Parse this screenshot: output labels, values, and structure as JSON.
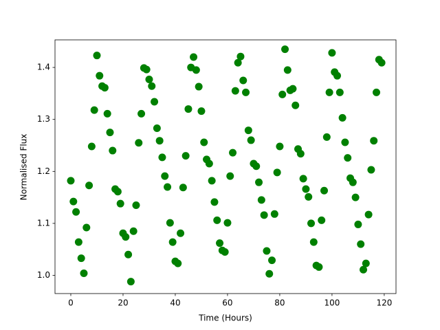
{
  "chart_data": {
    "type": "scatter",
    "xlabel": "Time (Hours)",
    "ylabel": "Normalised Flux",
    "x": [
      0,
      1,
      2,
      3,
      4,
      5,
      6,
      7,
      8,
      9,
      10,
      11,
      12,
      13,
      14,
      15,
      16,
      17,
      18,
      19,
      20,
      21,
      22,
      23,
      24,
      25,
      26,
      27,
      28,
      29,
      30,
      31,
      32,
      33,
      34,
      35,
      36,
      37,
      38,
      39,
      40,
      41,
      42,
      43,
      44,
      45,
      46,
      47,
      48,
      49,
      50,
      51,
      52,
      53,
      54,
      55,
      56,
      57,
      58,
      59,
      60,
      61,
      62,
      63,
      64,
      65,
      66,
      67,
      68,
      69,
      70,
      71,
      72,
      73,
      74,
      75,
      76,
      77,
      78,
      79,
      80,
      81,
      82,
      83,
      84,
      85,
      86,
      87,
      88,
      89,
      90,
      91,
      92,
      93,
      94,
      95,
      96,
      97,
      98,
      99,
      100,
      101,
      102,
      103,
      104,
      105,
      106,
      107,
      108,
      109,
      110,
      111,
      112,
      113,
      114,
      115,
      116,
      117,
      118,
      119
    ],
    "values": [
      1.182,
      1.142,
      1.122,
      1.064,
      1.033,
      1.004,
      1.092,
      1.173,
      1.248,
      1.318,
      1.423,
      1.384,
      1.364,
      1.361,
      1.311,
      1.275,
      1.24,
      1.166,
      1.161,
      1.138,
      1.081,
      1.074,
      1.04,
      0.988,
      1.085,
      1.135,
      1.255,
      1.311,
      1.399,
      1.396,
      1.377,
      1.364,
      1.334,
      1.283,
      1.259,
      1.227,
      1.191,
      1.17,
      1.101,
      1.064,
      1.027,
      1.023,
      1.081,
      1.169,
      1.23,
      1.32,
      1.4,
      1.42,
      1.395,
      1.363,
      1.316,
      1.256,
      1.223,
      1.215,
      1.182,
      1.141,
      1.106,
      1.062,
      1.048,
      1.045,
      1.101,
      1.191,
      1.236,
      1.355,
      1.409,
      1.421,
      1.375,
      1.352,
      1.279,
      1.26,
      1.215,
      1.21,
      1.179,
      1.145,
      1.116,
      1.047,
      1.003,
      1.029,
      1.118,
      1.198,
      1.248,
      1.348,
      1.435,
      1.395,
      1.356,
      1.359,
      1.327,
      1.243,
      1.234,
      1.186,
      1.166,
      1.151,
      1.1,
      1.064,
      1.019,
      1.016,
      1.106,
      1.163,
      1.266,
      1.352,
      1.428,
      1.391,
      1.384,
      1.352,
      1.303,
      1.256,
      1.226,
      1.187,
      1.179,
      1.15,
      1.098,
      1.06,
      1.011,
      1.023,
      1.117,
      1.203,
      1.259,
      1.352,
      1.415,
      1.409
    ],
    "color": "#008000",
    "xlim": [
      -6.05,
      124.5
    ],
    "xticks": [
      0,
      20,
      40,
      60,
      80,
      100,
      120
    ],
    "ylim": [
      0.965,
      1.453
    ],
    "yticks": [
      {
        "value": 1,
        "label": "1.0"
      },
      1.1,
      1.2,
      1.3,
      1.4
    ],
    "grid": false
  }
}
